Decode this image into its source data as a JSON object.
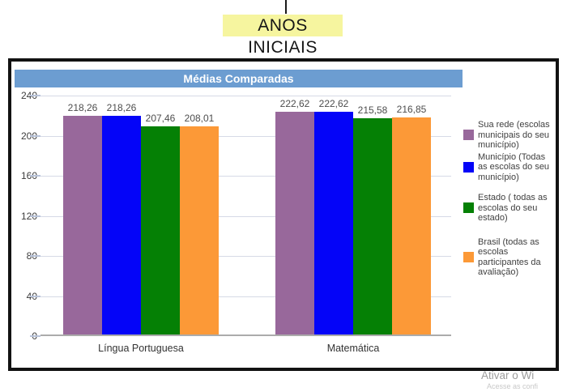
{
  "page": {
    "heading": "ANOS INICIAIS"
  },
  "watermark": {
    "line1": "Ativar o Wi",
    "line2": "Acesse as confi"
  },
  "chart_data": {
    "type": "bar",
    "title": "Médias Comparadas",
    "categories": [
      "Língua Portuguesa",
      "Matemática"
    ],
    "series": [
      {
        "name": "Sua rede (escolas municipais do seu município)",
        "color": "#98689B",
        "values": [
          218.26,
          222.62
        ],
        "value_labels": [
          "218,26",
          "222,62"
        ]
      },
      {
        "name": "Município (Todas as escolas do seu município)",
        "color": "#0404F8",
        "values": [
          218.26,
          222.62
        ],
        "value_labels": [
          "218,26",
          "222,62"
        ]
      },
      {
        "name": "Estado ( todas as escolas do seu estado)",
        "color": "#058005",
        "values": [
          207.46,
          215.58
        ],
        "value_labels": [
          "207,46",
          "215,58"
        ]
      },
      {
        "name": "Brasil (todas as escolas participantes da avaliação)",
        "color": "#FC9937",
        "values": [
          208.01,
          216.85
        ],
        "value_labels": [
          "208,01",
          "216,85"
        ]
      }
    ],
    "ylim": [
      0,
      240
    ],
    "yticks": [
      240,
      200,
      160,
      120,
      80,
      40,
      0
    ],
    "grid": true,
    "legend_position": "right",
    "colors": {
      "header_bg": "#6C9DD1",
      "header_text": "#FFFFFF",
      "grid_line": "#D6DAE6",
      "axis_line": "#ABABAB",
      "heading_highlight": "#F6F59F",
      "frame_border": "#121212",
      "value_label_text": "#4D4D4D"
    }
  }
}
